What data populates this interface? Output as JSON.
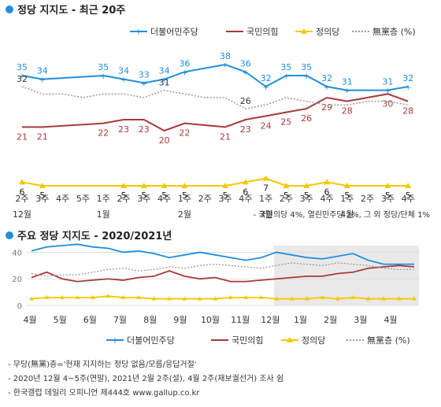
{
  "colors": {
    "minju": "#1f8ee0",
    "gukmin": "#a83a3a",
    "jeongui": "#f5c800",
    "none": "#9a9a9a",
    "bullet": "#1f8ee0",
    "shade": "#e9e9e9"
  },
  "chart_data": [
    {
      "type": "line",
      "title": "정당 지지도 - 최근 20주",
      "legend_position": "top-right",
      "categories": [
        "2주",
        "3주",
        "4주",
        "5주",
        "1주",
        "2주",
        "3주",
        "4주",
        "1주",
        "2주",
        "3주",
        "4주",
        "1주",
        "2주",
        "3주",
        "4주",
        "1주",
        "2주",
        "3주",
        "4주"
      ],
      "month_labels": [
        {
          "index": 0,
          "label": "12월"
        },
        {
          "index": 4,
          "label": "1월"
        },
        {
          "index": 8,
          "label": "2월"
        },
        {
          "index": 12,
          "label": "3월"
        },
        {
          "index": 16,
          "label": "4월"
        }
      ],
      "series": [
        {
          "name": "더불어민주당",
          "color_key": "minju",
          "values": [
            35,
            34,
            null,
            null,
            35,
            34,
            33,
            34,
            36,
            null,
            38,
            36,
            32,
            35,
            35,
            32,
            31,
            null,
            31,
            32
          ]
        },
        {
          "name": "국민의힘",
          "color_key": "gukmin",
          "values": [
            21,
            21,
            null,
            null,
            22,
            23,
            23,
            20,
            22,
            null,
            21,
            23,
            24,
            25,
            26,
            29,
            28,
            null,
            30,
            28
          ]
        },
        {
          "name": "정의당",
          "color_key": "jeongui",
          "values": [
            6,
            5,
            null,
            null,
            null,
            5,
            5,
            5,
            5,
            null,
            5,
            6,
            7,
            5,
            5,
            6,
            5,
            null,
            5,
            5
          ]
        },
        {
          "name": "無黨층 (%)",
          "color_key": "none",
          "style": "dotted",
          "values": [
            32,
            null,
            null,
            null,
            null,
            null,
            null,
            31,
            null,
            null,
            null,
            26,
            null,
            null,
            null,
            null,
            null,
            null,
            null,
            null
          ]
        }
      ],
      "ylim": [
        0,
        45
      ],
      "footnote": "- 국민의당 4%, 열린민주당 2%, 그 외 정당/단체 1%"
    },
    {
      "type": "line",
      "title": "주요 정당 지지도 - 2020/2021년",
      "legend_position": "bottom",
      "yticks": [
        0,
        20,
        40
      ],
      "ylim": [
        0,
        45
      ],
      "x_labels": [
        "4월",
        "5월",
        "6월",
        "7월",
        "8월",
        "9월",
        "10월",
        "11월",
        "12월",
        "1월",
        "2월",
        "3월",
        "4월"
      ],
      "shaded_range": [
        "12월",
        "4월"
      ],
      "series_names": [
        "더불어민주당",
        "국민의힘",
        "정의당",
        "無黨층 (%)"
      ],
      "series_approx": {
        "더불어민주당": [
          41,
          44,
          45,
          46,
          44,
          43,
          40,
          41,
          39,
          36,
          38,
          40,
          38,
          36,
          34,
          36,
          40,
          38,
          36,
          35,
          37,
          39,
          34,
          31,
          31,
          31
        ],
        "국민의힘": [
          21,
          25,
          20,
          18,
          19,
          20,
          19,
          21,
          22,
          26,
          22,
          20,
          21,
          18,
          18,
          19,
          20,
          21,
          22,
          22,
          24,
          25,
          28,
          29,
          30,
          29
        ],
        "정의당": [
          5,
          6,
          6,
          6,
          6,
          7,
          6,
          6,
          5,
          5,
          5,
          5,
          5,
          6,
          6,
          6,
          5,
          5,
          5,
          6,
          5,
          6,
          5,
          5,
          5,
          5
        ],
        "無黨층 (%)": [
          24,
          22,
          23,
          23,
          25,
          27,
          28,
          26,
          27,
          29,
          28,
          30,
          31,
          30,
          29,
          28,
          30,
          32,
          31,
          30,
          32,
          31,
          30,
          28,
          27,
          27
        ]
      }
    }
  ],
  "notes": [
    "- 무당(無黨)층='현재 지지하는 정당 없음/모름/응답거절'",
    "- 2020년 12월 4~5주(연말), 2021년 2월 2주(설), 4월 2주(재보궐선거) 조사 쉼",
    "- 한국갤럽 데일리 오피니언 제444호 www.gallup.co.kr"
  ]
}
